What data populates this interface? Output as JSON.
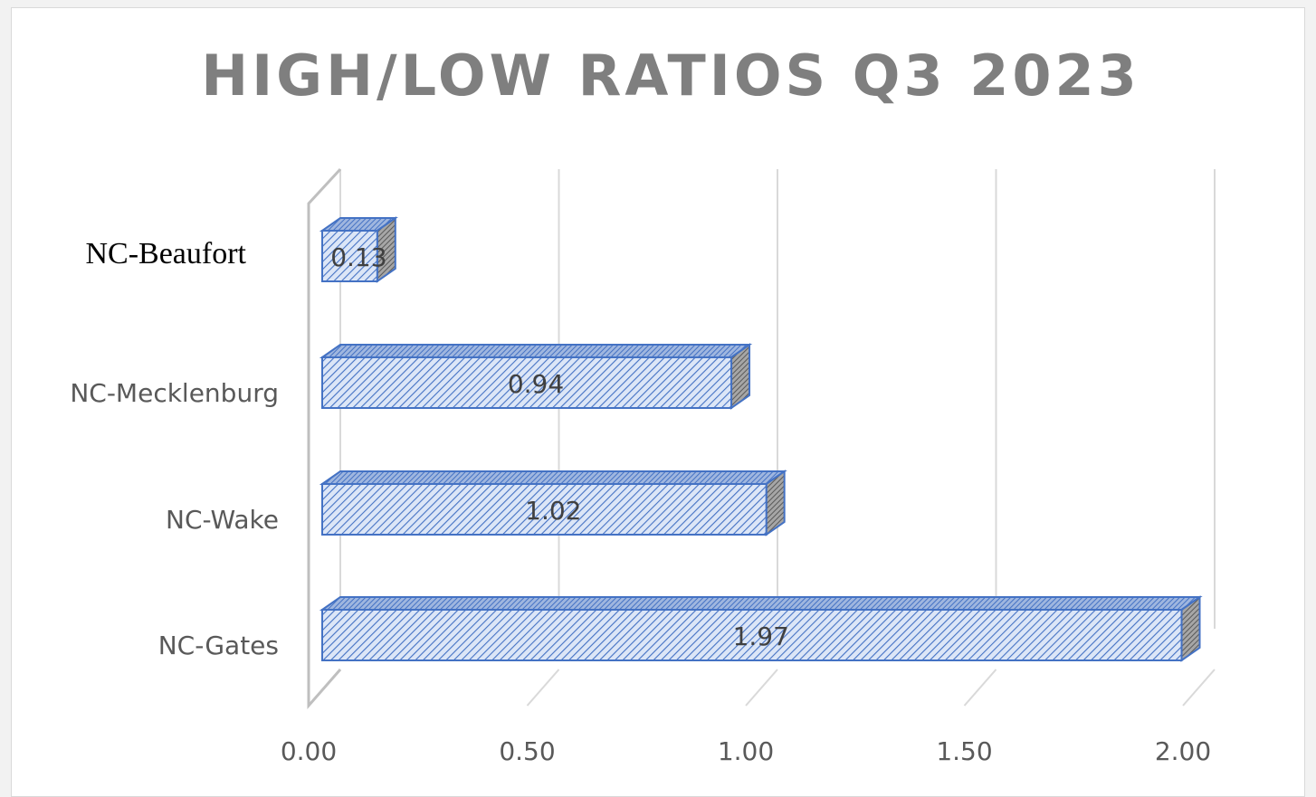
{
  "chart_data": {
    "type": "bar",
    "orientation": "horizontal",
    "style": "3d",
    "title": "HIGH/LOW RATIOS Q3 2023",
    "categories": [
      "NC-Beaufort",
      "NC-Mecklenburg",
      "NC-Wake",
      "NC-Gates"
    ],
    "values": [
      0.13,
      0.94,
      1.02,
      1.97
    ],
    "data_labels": [
      "0.13",
      "0.94",
      "1.02",
      "1.97"
    ],
    "xlim": [
      0,
      2
    ],
    "xticks": [
      "0.00",
      "0.50",
      "1.00",
      "1.50",
      "2.00"
    ],
    "xlabel": "",
    "ylabel": "",
    "grid": true,
    "legend": "none",
    "colors": {
      "bar_fill": "#dce6f7",
      "bar_hatch": "#4472c4",
      "bar_outline": "#4472c4",
      "bar_side": "#7f7f7f",
      "grid": "#d9d9d9",
      "title": "#7f7f7f",
      "labels": "#595959"
    }
  }
}
